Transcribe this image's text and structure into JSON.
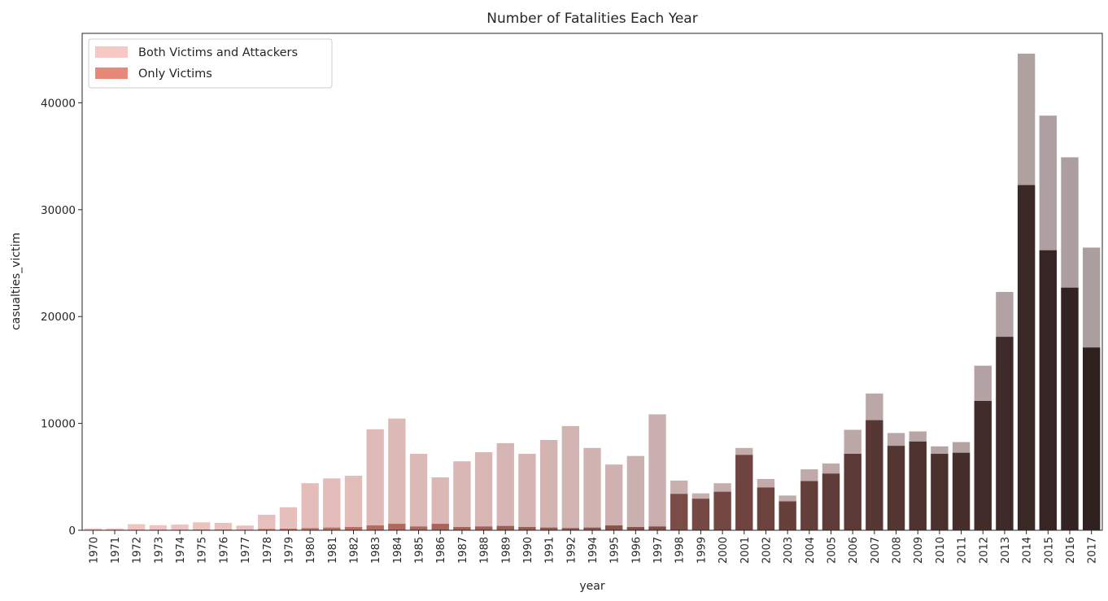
{
  "chart_data": {
    "type": "bar",
    "title": "Number of Fatalities Each Year",
    "xlabel": "year",
    "ylabel": "casualties_victim",
    "ylim": [
      0,
      46500
    ],
    "yticks": [
      0,
      10000,
      20000,
      30000,
      40000
    ],
    "legend": {
      "placement": "top-left",
      "entries": [
        "Both Victims and Attackers",
        "Only Victims"
      ]
    },
    "categories": [
      "1970",
      "1971",
      "1972",
      "1973",
      "1974",
      "1975",
      "1976",
      "1977",
      "1978",
      "1979",
      "1980",
      "1981",
      "1982",
      "1983",
      "1984",
      "1985",
      "1986",
      "1987",
      "1988",
      "1989",
      "1990",
      "1991",
      "1992",
      "1994",
      "1995",
      "1996",
      "1997",
      "1998",
      "1999",
      "2000",
      "2001",
      "2002",
      "2003",
      "2004",
      "2005",
      "2006",
      "2007",
      "2008",
      "2009",
      "2010",
      "2011",
      "2012",
      "2013",
      "2014",
      "2015",
      "2016",
      "2017"
    ],
    "series": [
      {
        "name": "Both Victims and Attackers",
        "values": [
          170,
          170,
          570,
          470,
          530,
          740,
          690,
          440,
          1450,
          2150,
          4400,
          4850,
          5100,
          9450,
          10450,
          7150,
          4950,
          6450,
          7300,
          8150,
          7150,
          8450,
          9750,
          7700,
          6150,
          6950,
          10850,
          4650,
          3450,
          4400,
          7700,
          4800,
          3250,
          5700,
          6250,
          9400,
          12800,
          9100,
          9250,
          7850,
          8250,
          15400,
          22300,
          44600,
          38800,
          34900,
          26450
        ]
      },
      {
        "name": "Only Victims",
        "values": [
          20,
          20,
          40,
          40,
          40,
          60,
          60,
          40,
          120,
          150,
          200,
          250,
          300,
          450,
          600,
          350,
          600,
          300,
          350,
          400,
          300,
          250,
          200,
          250,
          450,
          300,
          350,
          3400,
          2950,
          3600,
          7050,
          4000,
          2700,
          4600,
          5300,
          7150,
          10300,
          7900,
          8300,
          7150,
          7250,
          12100,
          18100,
          32300,
          26200,
          22700,
          17100
        ]
      }
    ],
    "colors": {
      "total_start": "#f4c6c2",
      "total_end": "#ab9e9f",
      "victim_start": "#e9877b",
      "victim_end": "#2e2120",
      "legend_total": "#f6c8c4",
      "legend_victim": "#e88878"
    }
  }
}
